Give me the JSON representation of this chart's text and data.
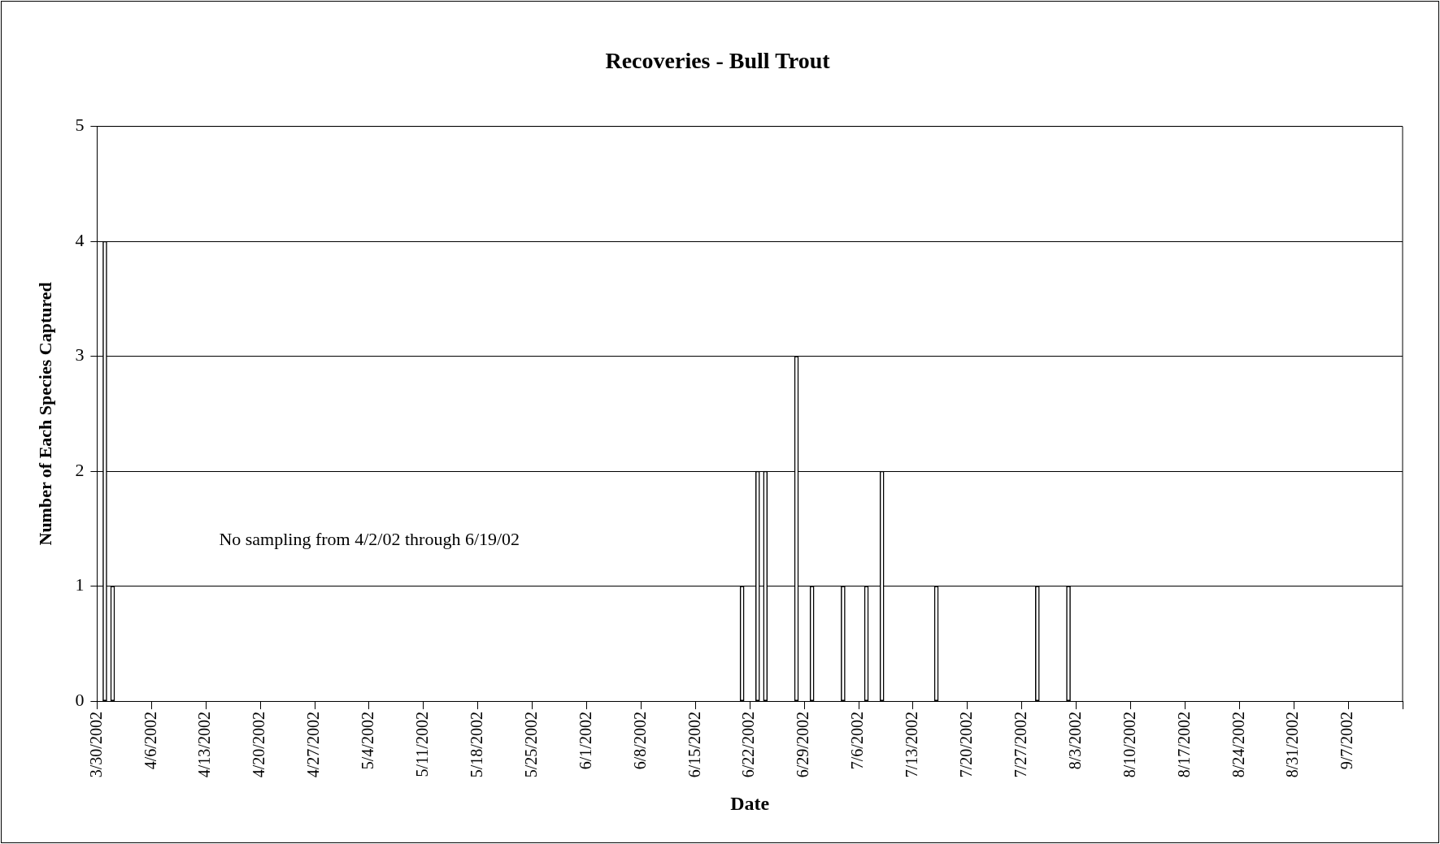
{
  "chart_data": {
    "type": "bar",
    "title": "Recoveries - Bull Trout",
    "xlabel": "Date",
    "ylabel": "Number of Each Species Captured",
    "annotations": [
      "No sampling from 4/2/02 through 6/19/02"
    ],
    "x": [
      "2002-03-31",
      "2002-04-01",
      "2002-06-21",
      "2002-06-23",
      "2002-06-24",
      "2002-06-28",
      "2002-06-30",
      "2002-07-04",
      "2002-07-07",
      "2002-07-09",
      "2002-07-16",
      "2002-07-29",
      "2002-08-02"
    ],
    "values": [
      4,
      1,
      1,
      2,
      2,
      3,
      1,
      1,
      1,
      2,
      1,
      1,
      1
    ],
    "color": "#ffffff",
    "xlim": [
      "2002-03-30",
      "2002-09-14"
    ],
    "xticks": [
      {
        "value": "2002-03-30",
        "label": "3/30/2002"
      },
      {
        "value": "2002-04-06",
        "label": "4/6/2002"
      },
      {
        "value": "2002-04-13",
        "label": "4/13/2002"
      },
      {
        "value": "2002-04-20",
        "label": "4/20/2002"
      },
      {
        "value": "2002-04-27",
        "label": "4/27/2002"
      },
      {
        "value": "2002-05-04",
        "label": "5/4/2002"
      },
      {
        "value": "2002-05-11",
        "label": "5/11/2002"
      },
      {
        "value": "2002-05-18",
        "label": "5/18/2002"
      },
      {
        "value": "2002-05-25",
        "label": "5/25/2002"
      },
      {
        "value": "2002-06-01",
        "label": "6/1/2002"
      },
      {
        "value": "2002-06-08",
        "label": "6/8/2002"
      },
      {
        "value": "2002-06-15",
        "label": "6/15/2002"
      },
      {
        "value": "2002-06-22",
        "label": "6/22/2002"
      },
      {
        "value": "2002-06-29",
        "label": "6/29/2002"
      },
      {
        "value": "2002-07-06",
        "label": "7/6/2002"
      },
      {
        "value": "2002-07-13",
        "label": "7/13/2002"
      },
      {
        "value": "2002-07-20",
        "label": "7/20/2002"
      },
      {
        "value": "2002-07-27",
        "label": "7/27/2002"
      },
      {
        "value": "2002-08-03",
        "label": "8/3/2002"
      },
      {
        "value": "2002-08-10",
        "label": "8/10/2002"
      },
      {
        "value": "2002-08-17",
        "label": "8/17/2002"
      },
      {
        "value": "2002-08-24",
        "label": "8/24/2002"
      },
      {
        "value": "2002-08-31",
        "label": "8/31/2002"
      },
      {
        "value": "2002-09-07",
        "label": "9/7/2002"
      },
      {
        "value": "2002-09-14",
        "label": null
      }
    ],
    "ylim": [
      0,
      5
    ],
    "yticks": [
      0,
      1,
      2,
      3,
      4,
      5
    ],
    "grid": "y",
    "legend": false
  }
}
